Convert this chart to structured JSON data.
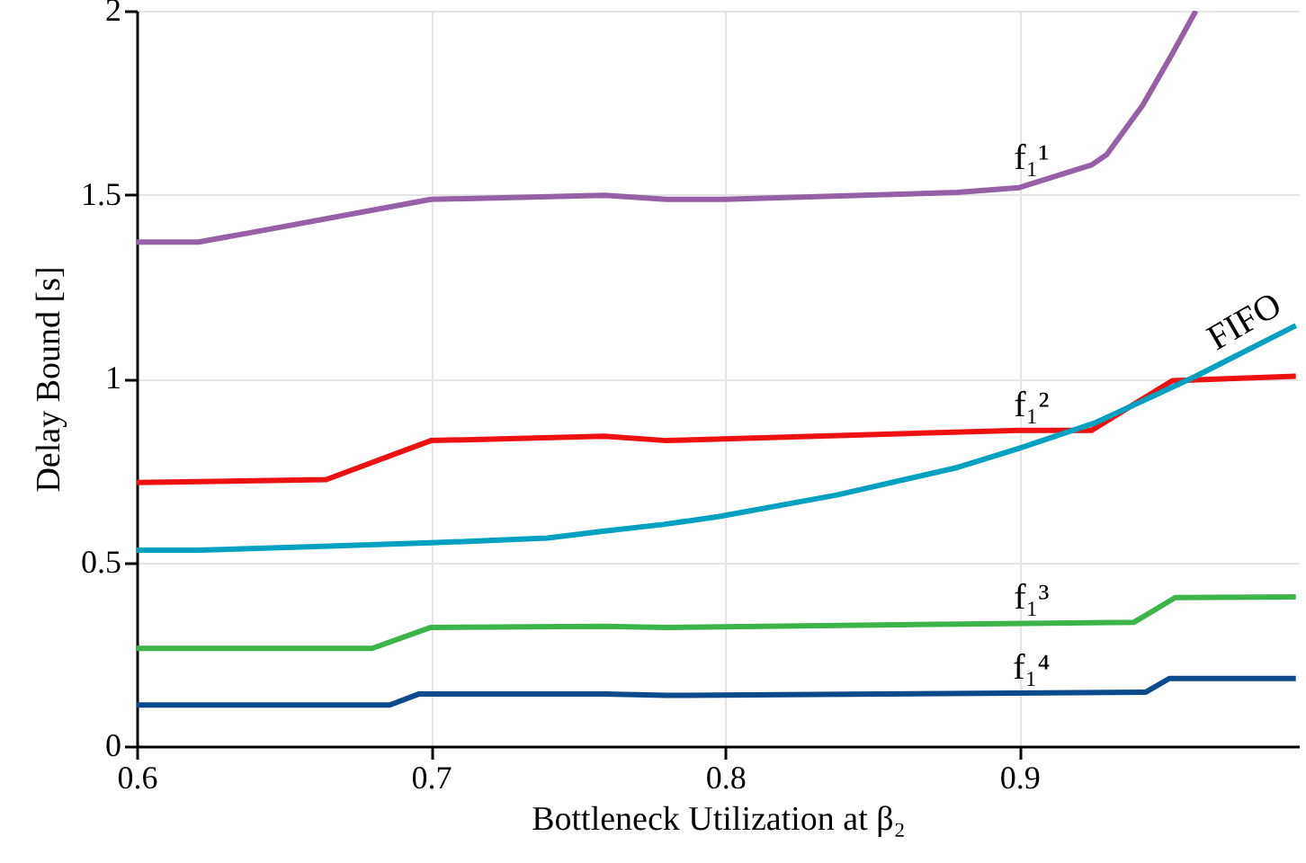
{
  "chart_data": {
    "type": "line",
    "xlabel": "Bottleneck Utilization at β₂",
    "ylabel": "Delay Bound [s]",
    "xlim": [
      0.6,
      0.995
    ],
    "xticks": [
      0.6,
      0.7,
      0.8,
      0.9
    ],
    "ylim": [
      0,
      2
    ],
    "yticks": [
      0,
      0.5,
      1,
      1.5,
      2
    ],
    "grid": true,
    "series": [
      {
        "name": "f₁¹",
        "color": "#9660a6",
        "x": [
          0.6,
          0.621,
          0.639,
          0.7,
          0.759,
          0.78,
          0.8,
          0.879,
          0.9,
          0.9246,
          0.9297,
          0.942,
          0.952,
          0.96
        ],
        "values": [
          1.371,
          1.371,
          1.397,
          1.487,
          1.498,
          1.487,
          1.487,
          1.506,
          1.519,
          1.581,
          1.609,
          1.744,
          1.883,
          2.0
        ]
      },
      {
        "name": "f₁²",
        "color": "#ee1111",
        "x": [
          0.6,
          0.6644,
          0.7,
          0.759,
          0.78,
          0.9,
          0.9246,
          0.952,
          0.994
        ],
        "values": [
          0.717,
          0.725,
          0.831,
          0.843,
          0.831,
          0.859,
          0.859,
          0.994,
          1.006
        ]
      },
      {
        "name": "FIFO",
        "color": "#00a0c0",
        "x": [
          0.6,
          0.621,
          0.6654,
          0.7,
          0.7396,
          0.759,
          0.779,
          0.7976,
          0.838,
          0.879,
          0.9,
          0.926,
          0.96,
          0.994
        ],
        "values": [
          0.533,
          0.533,
          0.544,
          0.553,
          0.566,
          0.585,
          0.603,
          0.624,
          0.683,
          0.758,
          0.81,
          0.88,
          1.006,
          1.144
        ]
      },
      {
        "name": "f₁³",
        "color": "#3cb44a",
        "x": [
          0.6,
          0.68,
          0.7,
          0.759,
          0.78,
          0.939,
          0.953,
          0.994
        ],
        "values": [
          0.266,
          0.266,
          0.323,
          0.326,
          0.323,
          0.337,
          0.404,
          0.406
        ]
      },
      {
        "name": "f₁⁴",
        "color": "#0b4a8b",
        "x": [
          0.6,
          0.686,
          0.696,
          0.7,
          0.759,
          0.78,
          0.943,
          0.951,
          0.994
        ],
        "values": [
          0.112,
          0.112,
          0.142,
          0.142,
          0.142,
          0.138,
          0.147,
          0.184,
          0.184
        ]
      }
    ]
  }
}
